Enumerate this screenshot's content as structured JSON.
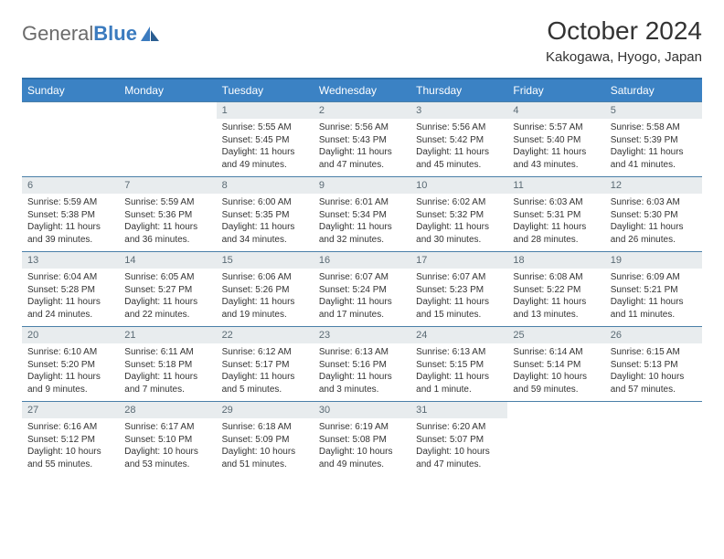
{
  "brand": {
    "name_gray": "General",
    "name_blue": "Blue"
  },
  "title": "October 2024",
  "location": "Kakogawa, Hyogo, Japan",
  "colors": {
    "header_bg": "#3b82c4",
    "header_border": "#2f6fa8",
    "row_border": "#4a7fa8",
    "daynum_bg": "#e8ecee",
    "daynum_fg": "#5a6a74",
    "text": "#333333",
    "logo_gray": "#6b6b6b",
    "logo_blue": "#3b7bbf"
  },
  "days_of_week": [
    "Sunday",
    "Monday",
    "Tuesday",
    "Wednesday",
    "Thursday",
    "Friday",
    "Saturday"
  ],
  "weeks": [
    [
      null,
      null,
      {
        "n": "1",
        "sr": "5:55 AM",
        "ss": "5:45 PM",
        "dl": "11 hours and 49 minutes."
      },
      {
        "n": "2",
        "sr": "5:56 AM",
        "ss": "5:43 PM",
        "dl": "11 hours and 47 minutes."
      },
      {
        "n": "3",
        "sr": "5:56 AM",
        "ss": "5:42 PM",
        "dl": "11 hours and 45 minutes."
      },
      {
        "n": "4",
        "sr": "5:57 AM",
        "ss": "5:40 PM",
        "dl": "11 hours and 43 minutes."
      },
      {
        "n": "5",
        "sr": "5:58 AM",
        "ss": "5:39 PM",
        "dl": "11 hours and 41 minutes."
      }
    ],
    [
      {
        "n": "6",
        "sr": "5:59 AM",
        "ss": "5:38 PM",
        "dl": "11 hours and 39 minutes."
      },
      {
        "n": "7",
        "sr": "5:59 AM",
        "ss": "5:36 PM",
        "dl": "11 hours and 36 minutes."
      },
      {
        "n": "8",
        "sr": "6:00 AM",
        "ss": "5:35 PM",
        "dl": "11 hours and 34 minutes."
      },
      {
        "n": "9",
        "sr": "6:01 AM",
        "ss": "5:34 PM",
        "dl": "11 hours and 32 minutes."
      },
      {
        "n": "10",
        "sr": "6:02 AM",
        "ss": "5:32 PM",
        "dl": "11 hours and 30 minutes."
      },
      {
        "n": "11",
        "sr": "6:03 AM",
        "ss": "5:31 PM",
        "dl": "11 hours and 28 minutes."
      },
      {
        "n": "12",
        "sr": "6:03 AM",
        "ss": "5:30 PM",
        "dl": "11 hours and 26 minutes."
      }
    ],
    [
      {
        "n": "13",
        "sr": "6:04 AM",
        "ss": "5:28 PM",
        "dl": "11 hours and 24 minutes."
      },
      {
        "n": "14",
        "sr": "6:05 AM",
        "ss": "5:27 PM",
        "dl": "11 hours and 22 minutes."
      },
      {
        "n": "15",
        "sr": "6:06 AM",
        "ss": "5:26 PM",
        "dl": "11 hours and 19 minutes."
      },
      {
        "n": "16",
        "sr": "6:07 AM",
        "ss": "5:24 PM",
        "dl": "11 hours and 17 minutes."
      },
      {
        "n": "17",
        "sr": "6:07 AM",
        "ss": "5:23 PM",
        "dl": "11 hours and 15 minutes."
      },
      {
        "n": "18",
        "sr": "6:08 AM",
        "ss": "5:22 PM",
        "dl": "11 hours and 13 minutes."
      },
      {
        "n": "19",
        "sr": "6:09 AM",
        "ss": "5:21 PM",
        "dl": "11 hours and 11 minutes."
      }
    ],
    [
      {
        "n": "20",
        "sr": "6:10 AM",
        "ss": "5:20 PM",
        "dl": "11 hours and 9 minutes."
      },
      {
        "n": "21",
        "sr": "6:11 AM",
        "ss": "5:18 PM",
        "dl": "11 hours and 7 minutes."
      },
      {
        "n": "22",
        "sr": "6:12 AM",
        "ss": "5:17 PM",
        "dl": "11 hours and 5 minutes."
      },
      {
        "n": "23",
        "sr": "6:13 AM",
        "ss": "5:16 PM",
        "dl": "11 hours and 3 minutes."
      },
      {
        "n": "24",
        "sr": "6:13 AM",
        "ss": "5:15 PM",
        "dl": "11 hours and 1 minute."
      },
      {
        "n": "25",
        "sr": "6:14 AM",
        "ss": "5:14 PM",
        "dl": "10 hours and 59 minutes."
      },
      {
        "n": "26",
        "sr": "6:15 AM",
        "ss": "5:13 PM",
        "dl": "10 hours and 57 minutes."
      }
    ],
    [
      {
        "n": "27",
        "sr": "6:16 AM",
        "ss": "5:12 PM",
        "dl": "10 hours and 55 minutes."
      },
      {
        "n": "28",
        "sr": "6:17 AM",
        "ss": "5:10 PM",
        "dl": "10 hours and 53 minutes."
      },
      {
        "n": "29",
        "sr": "6:18 AM",
        "ss": "5:09 PM",
        "dl": "10 hours and 51 minutes."
      },
      {
        "n": "30",
        "sr": "6:19 AM",
        "ss": "5:08 PM",
        "dl": "10 hours and 49 minutes."
      },
      {
        "n": "31",
        "sr": "6:20 AM",
        "ss": "5:07 PM",
        "dl": "10 hours and 47 minutes."
      },
      null,
      null
    ]
  ]
}
